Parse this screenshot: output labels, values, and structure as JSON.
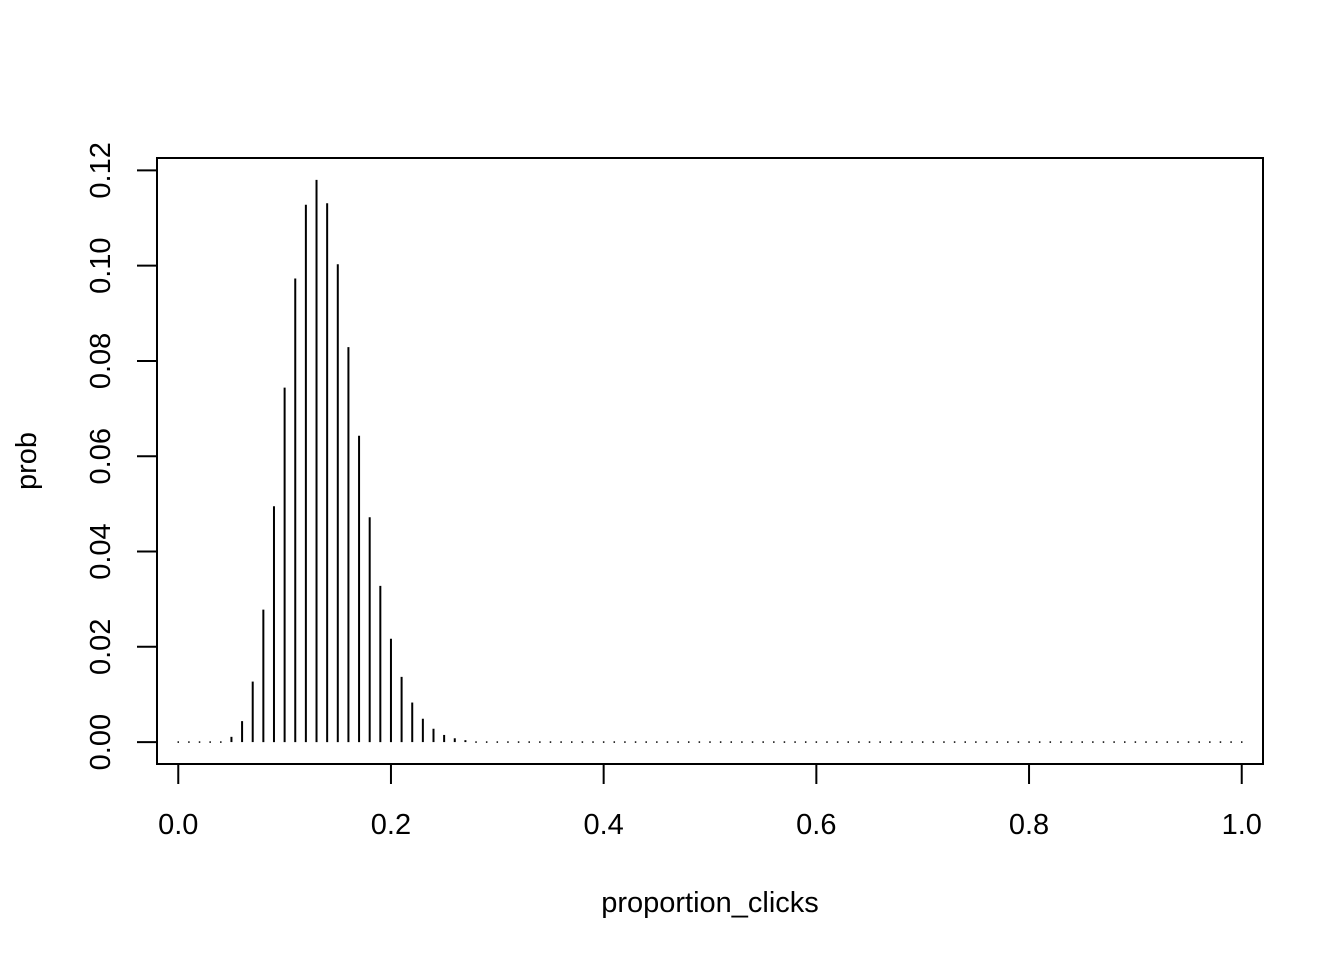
{
  "chart_data": {
    "type": "bar",
    "style": "histogram-spikes",
    "xlabel": "proportion_clicks",
    "ylabel": "prob",
    "xlim": [
      -0.02,
      1.02
    ],
    "ylim": [
      -0.0046,
      0.1226
    ],
    "xticks": [
      {
        "value": 0.0,
        "label": "0.0"
      },
      {
        "value": 0.2,
        "label": "0.2"
      },
      {
        "value": 0.4,
        "label": "0.4"
      },
      {
        "value": 0.6,
        "label": "0.6"
      },
      {
        "value": 0.8,
        "label": "0.8"
      },
      {
        "value": 1.0,
        "label": "1.0"
      }
    ],
    "yticks": [
      {
        "value": 0.0,
        "label": "0.00"
      },
      {
        "value": 0.02,
        "label": "0.02"
      },
      {
        "value": 0.04,
        "label": "0.04"
      },
      {
        "value": 0.06,
        "label": "0.06"
      },
      {
        "value": 0.08,
        "label": "0.08"
      },
      {
        "value": 0.1,
        "label": "0.10"
      },
      {
        "value": 0.12,
        "label": "0.12"
      }
    ],
    "grid": false,
    "x": [
      0.0,
      0.01,
      0.02,
      0.03,
      0.04,
      0.05,
      0.06,
      0.07,
      0.08,
      0.09,
      0.1,
      0.11,
      0.12,
      0.13,
      0.14,
      0.15,
      0.16,
      0.17,
      0.18,
      0.19,
      0.2,
      0.21,
      0.22,
      0.23,
      0.24,
      0.25,
      0.26,
      0.27,
      0.28,
      0.29,
      0.3,
      0.31,
      0.32,
      0.33,
      0.34,
      0.35,
      0.36,
      0.37,
      0.38,
      0.39,
      0.4,
      0.41,
      0.42,
      0.43,
      0.44,
      0.45,
      0.46,
      0.47,
      0.48,
      0.49,
      0.5,
      0.51,
      0.52,
      0.53,
      0.54,
      0.55,
      0.56,
      0.57,
      0.58,
      0.59,
      0.6,
      0.61,
      0.62,
      0.63,
      0.64,
      0.65,
      0.66,
      0.67,
      0.68,
      0.69,
      0.7,
      0.71,
      0.72,
      0.73,
      0.74,
      0.75,
      0.76,
      0.77,
      0.78,
      0.79,
      0.8,
      0.81,
      0.82,
      0.83,
      0.84,
      0.85,
      0.86,
      0.87,
      0.88,
      0.89,
      0.9,
      0.91,
      0.92,
      0.93,
      0.94,
      0.95,
      0.96,
      0.97,
      0.98,
      0.99,
      1.0
    ],
    "values": [
      0.0,
      0.0,
      0.0,
      0.0,
      0.0002,
      0.0011,
      0.0044,
      0.0127,
      0.0278,
      0.0495,
      0.0744,
      0.0973,
      0.1128,
      0.118,
      0.1131,
      0.1003,
      0.0829,
      0.0643,
      0.0472,
      0.0328,
      0.0217,
      0.0137,
      0.0083,
      0.0049,
      0.0028,
      0.0015,
      0.0008,
      0.0004,
      0.0002,
      0.0001,
      0.0,
      0.0,
      0.0,
      0.0,
      0.0,
      0.0,
      0.0,
      0.0,
      0.0,
      0.0,
      0.0,
      0.0,
      0.0,
      0.0,
      0.0,
      0.0,
      0.0,
      0.0,
      0.0,
      0.0,
      0.0,
      0.0,
      0.0,
      0.0,
      0.0,
      0.0,
      0.0,
      0.0,
      0.0,
      0.0,
      0.0,
      0.0,
      0.0,
      0.0,
      0.0,
      0.0,
      0.0,
      0.0,
      0.0,
      0.0,
      0.0,
      0.0,
      0.0,
      0.0,
      0.0,
      0.0,
      0.0,
      0.0,
      0.0,
      0.0,
      0.0,
      0.0,
      0.0,
      0.0,
      0.0,
      0.0,
      0.0,
      0.0,
      0.0,
      0.0,
      0.0,
      0.0,
      0.0,
      0.0,
      0.0,
      0.0,
      0.0,
      0.0,
      0.0,
      0.0,
      0.0
    ]
  }
}
